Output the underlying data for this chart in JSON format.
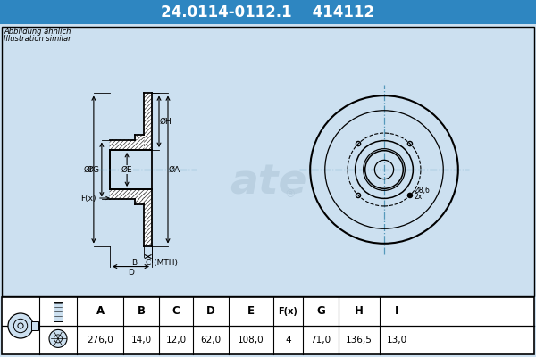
{
  "title_part_number": "24.0114-0112.1",
  "title_ref": "414112",
  "title_bg": "#2e86c1",
  "subtitle1": "Abbildung ähnlich",
  "subtitle2": "Illustration similar",
  "table_headers": [
    "A",
    "B",
    "C",
    "D",
    "E",
    "F(x)",
    "G",
    "H",
    "I"
  ],
  "table_values": [
    "276,0",
    "14,0",
    "12,0",
    "62,0",
    "108,0",
    "4",
    "71,0",
    "136,5",
    "13,0"
  ],
  "bg_color": "#cce0f0",
  "white": "#ffffff",
  "black": "#000000",
  "line_color": "#000000",
  "dim_color": "#000000",
  "cl_color": "#5599bb",
  "hatch_color": "#333333",
  "watermark_color": "#aec6d8"
}
